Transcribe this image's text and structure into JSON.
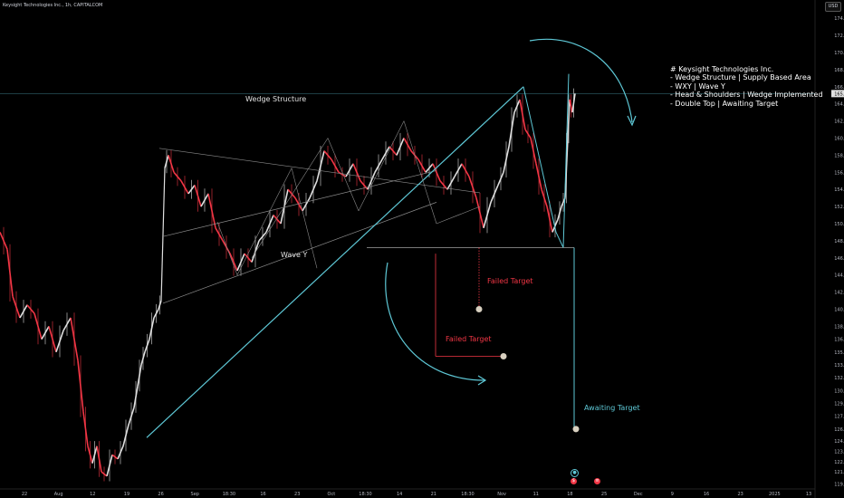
{
  "symbol": "Keysight Technologies Inc., 1h, CAPITALCOM",
  "currency": "USD",
  "price_badge": "165.20",
  "annotations": {
    "title": "# Keysight Technologies Inc.",
    "lines": [
      "- Wedge Structure | Supply Based Area",
      "- WXY | Wave Y",
      "- Head & Shoulders | Wedge Implemented",
      "- Double Top | Awaiting Target"
    ]
  },
  "labels": {
    "wedge": "Wedge Structure",
    "wave_y": "Wave Y",
    "failed_1": "Failed Target",
    "failed_2": "Failed Target",
    "awaiting": "Awaiting Target"
  },
  "colors": {
    "background": "#000000",
    "candle_up": "#e0e0e0",
    "candle_down": "#f23645",
    "trendline": "#5ec8d6",
    "wedge_line": "#8a8a8a",
    "failed": "#f23645"
  },
  "chart_data": {
    "type": "candlestick",
    "x_tick_labels": [
      "22",
      "Aug",
      "12",
      "19",
      "26",
      "Sep",
      "18:30",
      "16",
      "23",
      "Oct",
      "18:30",
      "14",
      "21",
      "18:30",
      "Nov",
      "11",
      "18",
      "25",
      "Dec",
      "9",
      "16",
      "23",
      "2025",
      "13"
    ],
    "y_ticks": [
      119.6,
      121.0,
      122.2,
      123.4,
      124.6,
      126.0,
      127.5,
      129.0,
      130.5,
      132.0,
      133.5,
      135.0,
      136.5,
      138.0,
      140.0,
      142.0,
      144.0,
      146.0,
      148.0,
      150.0,
      152.0,
      154.0,
      156.0,
      158.0,
      160.0,
      162.0,
      164.0,
      166.0,
      168.0,
      170.0,
      172.0,
      174.0
    ],
    "ylim": [
      119.0,
      175.5
    ],
    "close_path": [
      [
        0,
        149.0
      ],
      [
        8,
        147.0
      ],
      [
        14,
        141.5
      ],
      [
        22,
        139.0
      ],
      [
        30,
        140.5
      ],
      [
        38,
        139.5
      ],
      [
        46,
        136.5
      ],
      [
        54,
        138.0
      ],
      [
        62,
        135.0
      ],
      [
        70,
        137.5
      ],
      [
        78,
        139.0
      ],
      [
        86,
        134.0
      ],
      [
        92,
        128.0
      ],
      [
        97,
        124.0
      ],
      [
        102,
        122.0
      ],
      [
        107,
        124.0
      ],
      [
        112,
        121.0
      ],
      [
        118,
        120.5
      ],
      [
        124,
        123.0
      ],
      [
        130,
        122.5
      ],
      [
        136,
        124.0
      ],
      [
        142,
        126.5
      ],
      [
        148,
        128.5
      ],
      [
        152,
        131.0
      ],
      [
        156,
        133.5
      ],
      [
        160,
        135.0
      ],
      [
        165,
        136.5
      ],
      [
        170,
        139.0
      ],
      [
        175,
        140.0
      ],
      [
        178,
        141.0
      ],
      [
        182,
        156.5
      ],
      [
        186,
        158.0
      ],
      [
        192,
        156.0
      ],
      [
        200,
        155.0
      ],
      [
        208,
        153.5
      ],
      [
        215,
        154.5
      ],
      [
        222,
        152.0
      ],
      [
        230,
        153.5
      ],
      [
        238,
        149.5
      ],
      [
        246,
        148.0
      ],
      [
        254,
        146.5
      ],
      [
        262,
        144.5
      ],
      [
        270,
        146.5
      ],
      [
        278,
        145.5
      ],
      [
        286,
        148.0
      ],
      [
        294,
        149.0
      ],
      [
        302,
        151.0
      ],
      [
        310,
        150.0
      ],
      [
        318,
        154.0
      ],
      [
        326,
        153.0
      ],
      [
        334,
        151.5
      ],
      [
        342,
        153.0
      ],
      [
        350,
        155.0
      ],
      [
        358,
        158.5
      ],
      [
        366,
        157.5
      ],
      [
        374,
        156.0
      ],
      [
        382,
        155.5
      ],
      [
        390,
        157.0
      ],
      [
        398,
        155.0
      ],
      [
        406,
        154.0
      ],
      [
        414,
        156.0
      ],
      [
        422,
        157.5
      ],
      [
        430,
        159.0
      ],
      [
        438,
        158.0
      ],
      [
        446,
        160.0
      ],
      [
        454,
        158.5
      ],
      [
        462,
        157.5
      ],
      [
        470,
        156.0
      ],
      [
        478,
        157.0
      ],
      [
        486,
        155.0
      ],
      [
        494,
        154.0
      ],
      [
        502,
        155.5
      ],
      [
        510,
        157.0
      ],
      [
        518,
        155.5
      ],
      [
        526,
        153.0
      ],
      [
        534,
        149.5
      ],
      [
        542,
        152.5
      ],
      [
        550,
        154.5
      ],
      [
        556,
        156.0
      ],
      [
        562,
        159.0
      ],
      [
        568,
        163.0
      ],
      [
        574,
        164.5
      ],
      [
        580,
        161.0
      ],
      [
        586,
        160.0
      ],
      [
        592,
        157.0
      ],
      [
        598,
        154.0
      ],
      [
        604,
        152.0
      ],
      [
        610,
        149.0
      ],
      [
        616,
        150.5
      ],
      [
        620,
        152.0
      ],
      [
        624,
        153.0
      ],
      [
        627,
        160.0
      ],
      [
        629,
        164.5
      ],
      [
        632,
        163.0
      ],
      [
        635,
        165.2
      ]
    ],
    "line_color_rule": "down segments red, up segments white",
    "drawings": {
      "wedge_upper": [
        [
          180,
          148.5
        ],
        [
          482,
          156.2
        ]
      ],
      "wedge_lower": [
        [
          180,
          140.7
        ],
        [
          482,
          152.5
        ]
      ],
      "neckline": [
        [
          405,
          147.2
        ],
        [
          634,
          147.2
        ]
      ],
      "rising_trendline": [
        [
          162,
          125.0
        ],
        [
          578,
          166.0
        ]
      ],
      "wedge_inner_trend": [
        [
          176,
          158.8
        ],
        [
          530,
          153.6
        ]
      ],
      "failed_target_1": {
        "x": 529,
        "price": 140.0
      },
      "failed_target_2": {
        "x": 556,
        "price": 134.5
      },
      "failed_target_2_bracket_x": 481,
      "awaiting_target": {
        "x": 636,
        "price": 126.0
      },
      "awaiting_drop_x": 634,
      "price_line": 165.2
    }
  }
}
